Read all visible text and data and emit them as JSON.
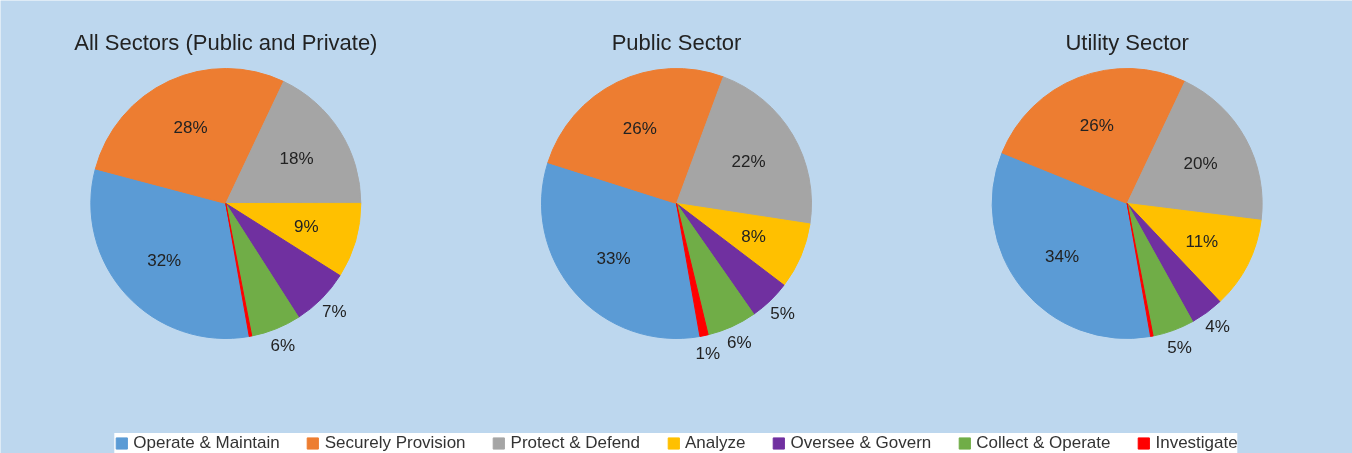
{
  "chart_data": [
    {
      "type": "pie",
      "title": "All Sectors (Public and Private)",
      "categories": [
        "Operate & Maintain",
        "Securely Provision",
        "Protect & Defend",
        "Analyze",
        "Oversee & Govern",
        "Collect & Operate",
        "Investigate"
      ],
      "values": [
        32,
        28,
        18,
        9,
        7,
        6,
        0.3
      ],
      "value_labels": [
        "32%",
        "28%",
        "18%",
        "9%",
        "7%",
        "6%",
        null
      ],
      "colors": [
        "#5b9bd5",
        "#ed7d31",
        "#a5a5a5",
        "#ffc000",
        "#7030a0",
        "#70ad47",
        "#ff0000"
      ],
      "legend": "bottom"
    },
    {
      "type": "pie",
      "title": "Public Sector",
      "categories": [
        null,
        null,
        null,
        null,
        null,
        null,
        null
      ],
      "values": [
        33,
        26,
        22,
        8,
        5,
        6,
        1
      ],
      "value_labels": [
        "33%",
        "26%",
        "22%",
        "8%",
        "5%",
        "6%",
        "1%"
      ],
      "colors": [
        "#5b9bd5",
        "#ed7d31",
        "#a5a5a5",
        "#ffc000",
        "#7030a0",
        "#70ad47",
        "#ff0000"
      ]
    },
    {
      "type": "pie",
      "title": "Utility Sector",
      "categories": [
        null,
        null,
        null,
        null,
        null,
        null,
        null
      ],
      "values": [
        34,
        26,
        20,
        11,
        4,
        5,
        0.3
      ],
      "value_labels": [
        "34%",
        "26%",
        "20%",
        "11%",
        "4%",
        "5%",
        null
      ],
      "colors": [
        "#5b9bd5",
        "#ed7d31",
        "#a5a5a5",
        "#ffc000",
        "#7030a0",
        "#70ad47",
        "#ff0000"
      ]
    }
  ]
}
